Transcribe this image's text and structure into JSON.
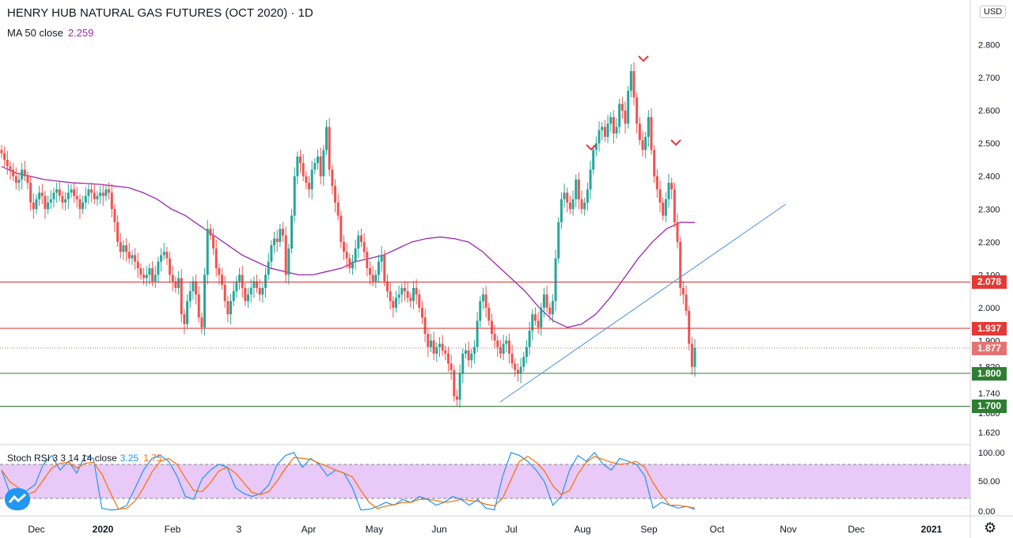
{
  "header": {
    "title": "HENRY HUB NATURAL GAS FUTURES (OCT 2020) · 1D",
    "ma_label": "MA 50 close",
    "ma_value": "2.259",
    "currency": "USD"
  },
  "indicator": {
    "label": "Stoch RSI 3 3 14 14 close",
    "k_value": "3.25",
    "d_value": "1.75"
  },
  "colors": {
    "up": "#26a69a",
    "down": "#ef5350",
    "ma": "#9c27b0",
    "trend": "#4a90e2",
    "resistance": "#d32f2f",
    "support": "#2e7d32",
    "stoch_k": "#2196f3",
    "stoch_d": "#ff6d00",
    "stoch_band": "#e8c9f7"
  },
  "chart_data": {
    "type": "candlestick",
    "x_axis_labels": [
      "Dec",
      "2020",
      "Feb",
      "3",
      "Apr",
      "May",
      "Jun",
      "Jul",
      "Aug",
      "Sep",
      "Oct",
      "Nov",
      "Dec",
      "2021"
    ],
    "price_ticks": [
      "2.800",
      "2.700",
      "2.600",
      "2.500",
      "2.400",
      "2.300",
      "2.200",
      "2.100",
      "2.000",
      "1.900",
      "1.820",
      "1.740",
      "1.680",
      "1.620"
    ],
    "price_levels": [
      {
        "label": "2.078",
        "value": 2.078,
        "kind": "resistance"
      },
      {
        "label": "1.937",
        "value": 1.937,
        "kind": "resistance"
      },
      {
        "label": "1.877",
        "value": 1.877,
        "kind": "last"
      },
      {
        "label": "1.800",
        "value": 1.8,
        "kind": "support"
      },
      {
        "label": "1.700",
        "value": 1.7,
        "kind": "support"
      }
    ],
    "stoch_ticks": [
      "100.00",
      "50.00",
      "0.00"
    ],
    "stoch_band": [
      20,
      80
    ],
    "ylim": [
      1.6,
      2.84
    ],
    "series_close": [
      2.47,
      2.45,
      2.43,
      2.42,
      2.4,
      2.38,
      2.39,
      2.42,
      2.4,
      2.38,
      2.32,
      2.3,
      2.33,
      2.35,
      2.34,
      2.3,
      2.32,
      2.33,
      2.35,
      2.36,
      2.34,
      2.32,
      2.33,
      2.35,
      2.36,
      2.34,
      2.33,
      2.3,
      2.32,
      2.34,
      2.36,
      2.35,
      2.33,
      2.34,
      2.35,
      2.34,
      2.36,
      2.35,
      2.3,
      2.26,
      2.2,
      2.17,
      2.19,
      2.17,
      2.15,
      2.16,
      2.14,
      2.12,
      2.1,
      2.09,
      2.1,
      2.12,
      2.08,
      2.1,
      2.14,
      2.16,
      2.17,
      2.15,
      2.1,
      2.08,
      2.06,
      2.09,
      1.98,
      1.95,
      2.02,
      2.05,
      2.08,
      2.04,
      1.97,
      1.94,
      2.1,
      2.24,
      2.22,
      2.18,
      2.12,
      2.1,
      2.07,
      2.02,
      1.98,
      2.02,
      2.05,
      2.08,
      2.1,
      2.06,
      2.02,
      2.04,
      2.06,
      2.08,
      2.06,
      2.04,
      2.06,
      2.1,
      2.14,
      2.19,
      2.21,
      2.2,
      2.24,
      2.22,
      2.1,
      2.18,
      2.28,
      2.4,
      2.46,
      2.44,
      2.4,
      2.38,
      2.36,
      2.42,
      2.44,
      2.46,
      2.4,
      2.48,
      2.55,
      2.42,
      2.37,
      2.32,
      2.28,
      2.2,
      2.17,
      2.15,
      2.12,
      2.14,
      2.18,
      2.22,
      2.2,
      2.17,
      2.12,
      2.1,
      2.08,
      2.1,
      2.14,
      2.16,
      2.08,
      2.05,
      2.02,
      2.0,
      2.03,
      2.04,
      2.06,
      2.05,
      2.03,
      2.02,
      2.06,
      2.04,
      2.0,
      1.97,
      1.92,
      1.88,
      1.9,
      1.86,
      1.88,
      1.89,
      1.87,
      1.86,
      1.83,
      1.81,
      1.73,
      1.72,
      1.8,
      1.86,
      1.87,
      1.84,
      1.86,
      1.88,
      1.96,
      2.02,
      2.04,
      2.0,
      1.96,
      1.92,
      1.9,
      1.88,
      1.86,
      1.89,
      1.9,
      1.86,
      1.83,
      1.81,
      1.8,
      1.82,
      1.85,
      1.88,
      1.93,
      1.98,
      1.96,
      1.94,
      2.0,
      2.04,
      2.0,
      1.98,
      2.02,
      2.15,
      2.26,
      2.33,
      2.35,
      2.32,
      2.3,
      2.33,
      2.39,
      2.33,
      2.3,
      2.32,
      2.36,
      2.42,
      2.48,
      2.5,
      2.54,
      2.55,
      2.52,
      2.56,
      2.58,
      2.53,
      2.55,
      2.62,
      2.6,
      2.56,
      2.66,
      2.72,
      2.64,
      2.56,
      2.51,
      2.48,
      2.52,
      2.58,
      2.48,
      2.4,
      2.36,
      2.32,
      2.28,
      2.33,
      2.38,
      2.36,
      2.26,
      2.2,
      2.06,
      2.04,
      1.99,
      1.89,
      1.82,
      1.877
    ],
    "ma50": [
      2.43,
      2.41,
      2.4,
      2.39,
      2.385,
      2.38,
      2.378,
      2.375,
      2.37,
      2.365,
      2.35,
      2.33,
      2.3,
      2.28,
      2.25,
      2.22,
      2.19,
      2.16,
      2.14,
      2.12,
      2.11,
      2.1,
      2.1,
      2.11,
      2.12,
      2.14,
      2.15,
      2.16,
      2.18,
      2.2,
      2.21,
      2.215,
      2.21,
      2.2,
      2.17,
      2.13,
      2.09,
      2.05,
      2.0,
      1.96,
      1.94,
      1.95,
      1.98,
      2.03,
      2.09,
      2.15,
      2.2,
      2.24,
      2.26,
      2.259
    ],
    "stoch_k": [
      70,
      30,
      20,
      35,
      45,
      80,
      95,
      70,
      85,
      65,
      95,
      90,
      5,
      2,
      3,
      10,
      40,
      70,
      90,
      95,
      85,
      60,
      25,
      20,
      55,
      70,
      80,
      75,
      40,
      30,
      25,
      30,
      45,
      80,
      95,
      100,
      75,
      90,
      80,
      60,
      70,
      65,
      40,
      2,
      3,
      8,
      15,
      10,
      20,
      15,
      25,
      20,
      10,
      15,
      25,
      20,
      10,
      20,
      5,
      2,
      60,
      100,
      95,
      85,
      70,
      50,
      10,
      25,
      70,
      95,
      85,
      100,
      80,
      70,
      90,
      85,
      80,
      60,
      5,
      15,
      10,
      5,
      8,
      3
    ]
  }
}
